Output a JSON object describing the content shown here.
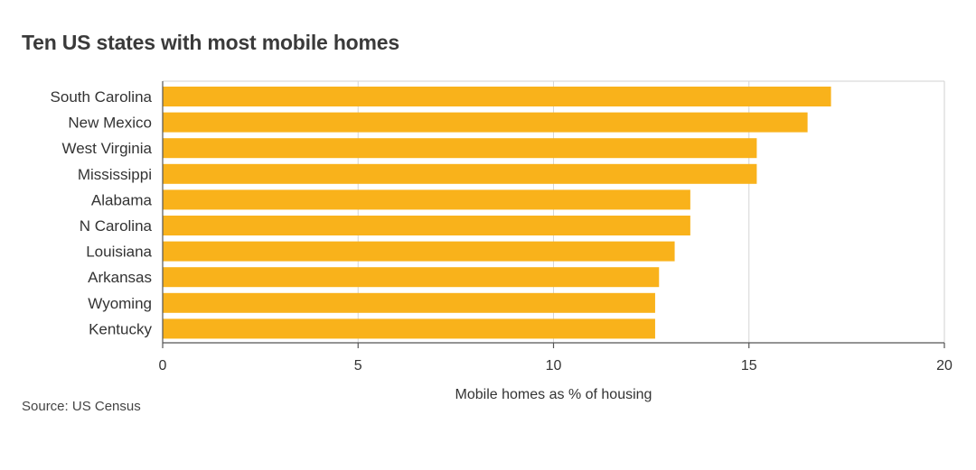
{
  "chart_data": {
    "type": "bar",
    "orientation": "horizontal",
    "title": "Ten US states with most mobile homes",
    "categories": [
      "South Carolina",
      "New Mexico",
      "West Virginia",
      "Mississippi",
      "Alabama",
      "N Carolina",
      "Louisiana",
      "Arkansas",
      "Wyoming",
      "Kentucky"
    ],
    "values": [
      17.1,
      16.5,
      15.2,
      15.2,
      13.5,
      13.5,
      13.1,
      12.7,
      12.6,
      12.6
    ],
    "xlabel": "Mobile homes as % of housing",
    "ylabel": "",
    "xlim": [
      0,
      20
    ],
    "xticks": [
      0,
      5,
      10,
      15,
      20
    ],
    "xtick_labels": [
      "0",
      "5",
      "10",
      "15",
      "20"
    ],
    "grid": true,
    "bar_color": "#f9b21b",
    "source": "Source: US Census"
  }
}
